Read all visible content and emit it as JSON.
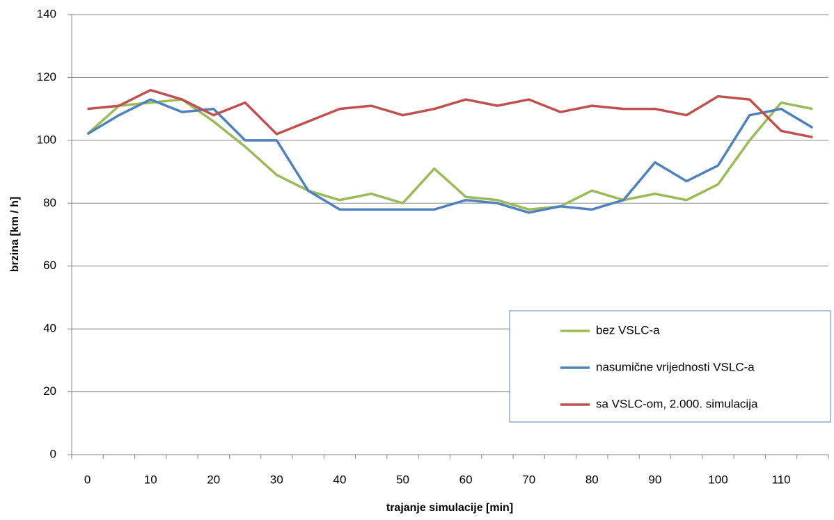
{
  "chart_data": {
    "type": "line",
    "x_label": "trajanje simulacije [min]",
    "y_label": "brzina [km / h]",
    "categories": [
      "0",
      null,
      "10",
      null,
      "20",
      null,
      "30",
      null,
      "40",
      null,
      "50",
      null,
      "60",
      null,
      "70",
      null,
      "80",
      null,
      "90",
      null,
      "100",
      null,
      "110",
      null
    ],
    "series": [
      {
        "name": "bez VSLC-a",
        "color": "#9bbb59",
        "values": [
          102,
          111,
          112,
          113,
          106,
          98,
          89,
          84,
          81,
          83,
          80,
          91,
          82,
          81,
          78,
          79,
          84,
          81,
          83,
          81,
          86,
          100,
          112,
          110
        ]
      },
      {
        "name": "nasumične vrijednosti VSLC-a",
        "color": "#4f81bd",
        "values": [
          102,
          108,
          113,
          109,
          110,
          100,
          100,
          84,
          78,
          78,
          78,
          78,
          81,
          80,
          77,
          79,
          78,
          81,
          93,
          87,
          92,
          108,
          110,
          104
        ]
      },
      {
        "name": "sa VSLC-om, 2.000. simulacija",
        "color": "#c0504d",
        "values": [
          110,
          111,
          116,
          113,
          108,
          112,
          102,
          106,
          110,
          111,
          108,
          110,
          113,
          111,
          113,
          109,
          111,
          110,
          110,
          108,
          114,
          113,
          103,
          101
        ]
      }
    ],
    "ylim": [
      0,
      140
    ],
    "yticks": [
      0,
      20,
      40,
      60,
      80,
      100,
      120,
      140
    ],
    "grid": true
  }
}
